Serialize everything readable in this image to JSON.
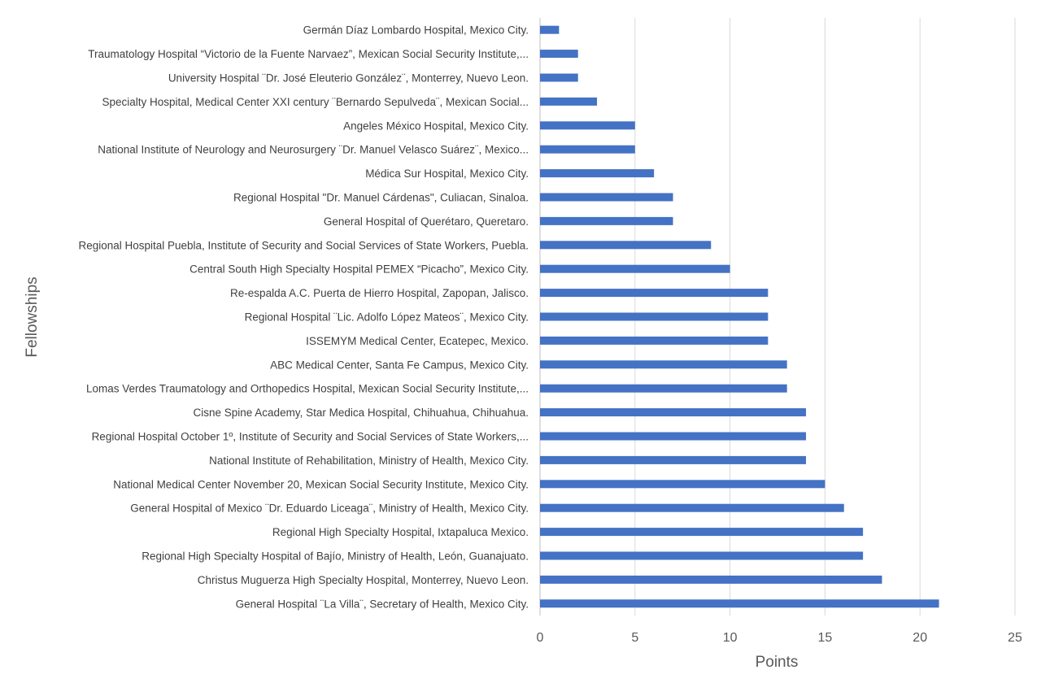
{
  "chart_data": {
    "type": "bar",
    "orientation": "horizontal",
    "title": "",
    "xlabel": "Points",
    "ylabel": "Fellowships",
    "xlim": [
      0,
      25
    ],
    "xticks": [
      0,
      5,
      10,
      15,
      20,
      25
    ],
    "grid": "vertical",
    "legend": "none",
    "bar_color": "#4472C4",
    "categories": [
      "Germán Díaz Lombardo Hospital, Mexico City.",
      "Traumatology Hospital “Victorio de la Fuente Narvaez”, Mexican Social Security Institute,...",
      "University Hospital ¨Dr. José Eleuterio González¨, Monterrey, Nuevo Leon.",
      "Specialty Hospital, Medical Center XXI century ¨Bernardo Sepulveda¨, Mexican Social...",
      "Angeles México Hospital, Mexico City.",
      "National Institute of Neurology and Neurosurgery ¨Dr. Manuel Velasco Suárez¨, Mexico...",
      "Médica Sur Hospital, Mexico City.",
      "Regional Hospital \"Dr. Manuel Cárdenas\", Culiacan, Sinaloa.",
      "General Hospital of Querétaro, Queretaro.",
      "Regional Hospital Puebla, Institute of Security and Social Services of State Workers, Puebla.",
      "Central South High Specialty Hospital PEMEX “Picacho”, Mexico City.",
      "Re-espalda A.C. Puerta de Hierro Hospital, Zapopan, Jalisco.",
      "Regional Hospital ¨Lic. Adolfo López Mateos¨, Mexico City.",
      "ISSEMYM Medical Center, Ecatepec, Mexico.",
      "ABC Medical Center, Santa Fe Campus, Mexico City.",
      "Lomas Verdes Traumatology and Orthopedics Hospital, Mexican Social Security Institute,...",
      "Cisne Spine Academy, Star Medica Hospital, Chihuahua, Chihuahua.",
      "Regional Hospital October 1º, Institute of Security and Social Services of State Workers,...",
      "National Institute of Rehabilitation, Ministry of Health, Mexico City.",
      "National Medical Center November 20, Mexican Social Security Institute, Mexico City.",
      "General Hospital of Mexico ¨Dr. Eduardo Liceaga¨, Ministry of Health, Mexico City.",
      "Regional High Specialty Hospital, Ixtapaluca Mexico.",
      "Regional High Specialty Hospital of Bajío, Ministry of Health, León, Guanajuato.",
      "Christus Muguerza High Specialty Hospital, Monterrey, Nuevo Leon.",
      "General Hospital ¨La Villa¨, Secretary of Health, Mexico City."
    ],
    "values": [
      1,
      2,
      2,
      3,
      5,
      5,
      6,
      7,
      7,
      9,
      10,
      12,
      12,
      12,
      13,
      13,
      14,
      14,
      14,
      15,
      16,
      17,
      17,
      18,
      21
    ]
  }
}
